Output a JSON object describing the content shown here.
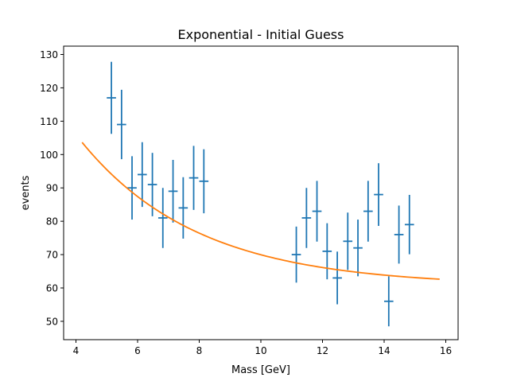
{
  "chart_data": {
    "type": "scatter",
    "title": "Exponential - Initial Guess",
    "xlabel": "Mass [GeV]",
    "ylabel": "events",
    "xlim": [
      3.6,
      16.4
    ],
    "ylim": [
      44.5,
      132.5
    ],
    "x_ticks": [
      4,
      6,
      8,
      10,
      12,
      14,
      16
    ],
    "y_ticks": [
      50,
      60,
      70,
      80,
      90,
      100,
      110,
      120,
      130
    ],
    "grid": false,
    "legend": "none",
    "series": [
      {
        "kind": "errorbar",
        "color": "#1f77b4",
        "bin_halfwidth": 0.15,
        "points": [
          {
            "x": 5.15,
            "y": 117,
            "err": 10.8
          },
          {
            "x": 5.48,
            "y": 109,
            "err": 10.4
          },
          {
            "x": 5.82,
            "y": 90,
            "err": 9.5
          },
          {
            "x": 6.15,
            "y": 94,
            "err": 9.7
          },
          {
            "x": 6.48,
            "y": 91,
            "err": 9.5
          },
          {
            "x": 6.82,
            "y": 81,
            "err": 9.0
          },
          {
            "x": 7.15,
            "y": 89,
            "err": 9.4
          },
          {
            "x": 7.48,
            "y": 84,
            "err": 9.2
          },
          {
            "x": 7.82,
            "y": 93,
            "err": 9.6
          },
          {
            "x": 8.15,
            "y": 92,
            "err": 9.6
          },
          {
            "x": 11.15,
            "y": 70,
            "err": 8.4
          },
          {
            "x": 11.48,
            "y": 81,
            "err": 9.0
          },
          {
            "x": 11.82,
            "y": 83,
            "err": 9.1
          },
          {
            "x": 12.15,
            "y": 71,
            "err": 8.4
          },
          {
            "x": 12.48,
            "y": 63,
            "err": 7.9
          },
          {
            "x": 12.82,
            "y": 74,
            "err": 8.6
          },
          {
            "x": 13.15,
            "y": 72,
            "err": 8.5
          },
          {
            "x": 13.48,
            "y": 83,
            "err": 9.1
          },
          {
            "x": 13.82,
            "y": 88,
            "err": 9.4
          },
          {
            "x": 14.15,
            "y": 56,
            "err": 7.5
          },
          {
            "x": 14.48,
            "y": 76,
            "err": 8.7
          },
          {
            "x": 14.82,
            "y": 79,
            "err": 8.9
          }
        ]
      },
      {
        "kind": "line",
        "color": "#ff7f0e",
        "model": "exponential",
        "x_range": [
          4.2,
          15.8
        ],
        "params": {
          "A": 60.6,
          "B": 130.0,
          "tau": 3.8
        }
      }
    ]
  }
}
